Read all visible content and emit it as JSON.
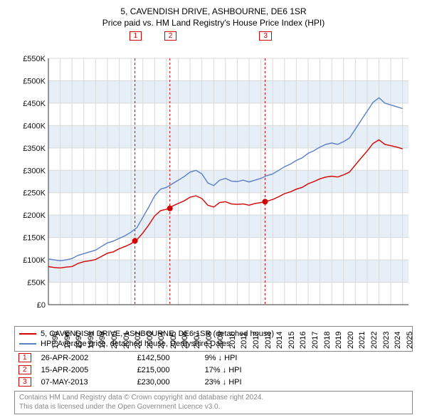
{
  "title_line1": "5, CAVENDISH DRIVE, ASHBOURNE, DE6 1SR",
  "title_line2": "Price paid vs. HM Land Registry's House Price Index (HPI)",
  "chart": {
    "type": "line",
    "background_color": "#ffffff",
    "grid_color": "#d9d9d9",
    "band_color": "#e6eef7",
    "axis_color": "#333333",
    "tick_fontsize": 11,
    "x": {
      "min": 1995,
      "max": 2025.5,
      "labels": [
        "1995",
        "1996",
        "1997",
        "1998",
        "1999",
        "2000",
        "2001",
        "2002",
        "2003",
        "2004",
        "2005",
        "2006",
        "2007",
        "2008",
        "2009",
        "2010",
        "2011",
        "2012",
        "2013",
        "2014",
        "2015",
        "2016",
        "2017",
        "2018",
        "2019",
        "2020",
        "2021",
        "2022",
        "2023",
        "2024",
        "2025"
      ]
    },
    "y": {
      "min": 0,
      "max": 550000,
      "tick_step": 50000,
      "labels": [
        "£0",
        "£50K",
        "£100K",
        "£150K",
        "£200K",
        "£250K",
        "£300K",
        "£350K",
        "£400K",
        "£450K",
        "£500K",
        "£550K"
      ]
    },
    "series": [
      {
        "name": "5, CAVENDISH DRIVE, ASHBOURNE, DE6 1SR (detached house)",
        "color": "#d40000",
        "line_width": 1.4,
        "points": [
          [
            1995,
            85000
          ],
          [
            1995.5,
            83000
          ],
          [
            1996,
            82000
          ],
          [
            1996.5,
            84000
          ],
          [
            1997,
            85000
          ],
          [
            1997.5,
            92000
          ],
          [
            1998,
            96000
          ],
          [
            1998.5,
            98000
          ],
          [
            1999,
            101000
          ],
          [
            1999.5,
            108000
          ],
          [
            2000,
            115000
          ],
          [
            2000.5,
            118000
          ],
          [
            2001,
            125000
          ],
          [
            2001.5,
            130000
          ],
          [
            2002,
            136000
          ],
          [
            2002.33,
            142500
          ],
          [
            2002.5,
            145000
          ],
          [
            2003,
            160000
          ],
          [
            2003.5,
            178000
          ],
          [
            2004,
            198000
          ],
          [
            2004.5,
            210000
          ],
          [
            2005,
            213000
          ],
          [
            2005.29,
            215000
          ],
          [
            2005.5,
            220000
          ],
          [
            2006,
            226000
          ],
          [
            2006.5,
            232000
          ],
          [
            2007,
            240000
          ],
          [
            2007.5,
            243000
          ],
          [
            2008,
            237000
          ],
          [
            2008.5,
            222000
          ],
          [
            2009,
            218000
          ],
          [
            2009.5,
            228000
          ],
          [
            2010,
            230000
          ],
          [
            2010.5,
            225000
          ],
          [
            2011,
            224000
          ],
          [
            2011.5,
            225000
          ],
          [
            2012,
            222000
          ],
          [
            2012.5,
            226000
          ],
          [
            2013,
            228000
          ],
          [
            2013.35,
            230000
          ],
          [
            2013.5,
            231000
          ],
          [
            2014,
            235000
          ],
          [
            2014.5,
            241000
          ],
          [
            2015,
            248000
          ],
          [
            2015.5,
            252000
          ],
          [
            2016,
            258000
          ],
          [
            2016.5,
            262000
          ],
          [
            2017,
            270000
          ],
          [
            2017.5,
            275000
          ],
          [
            2018,
            281000
          ],
          [
            2018.5,
            285000
          ],
          [
            2019,
            287000
          ],
          [
            2019.5,
            285000
          ],
          [
            2020,
            290000
          ],
          [
            2020.5,
            296000
          ],
          [
            2021,
            312000
          ],
          [
            2021.5,
            328000
          ],
          [
            2022,
            343000
          ],
          [
            2022.5,
            360000
          ],
          [
            2023,
            368000
          ],
          [
            2023.5,
            358000
          ],
          [
            2024,
            355000
          ],
          [
            2024.5,
            352000
          ],
          [
            2025,
            348000
          ]
        ]
      },
      {
        "name": "HPI: Average price, detached house, Derbyshire Dales",
        "color": "#5b7fc7",
        "line_width": 1.4,
        "points": [
          [
            1995,
            102000
          ],
          [
            1995.5,
            100000
          ],
          [
            1996,
            98000
          ],
          [
            1996.5,
            100000
          ],
          [
            1997,
            103000
          ],
          [
            1997.5,
            110000
          ],
          [
            1998,
            114000
          ],
          [
            1998.5,
            118000
          ],
          [
            1999,
            122000
          ],
          [
            1999.5,
            130000
          ],
          [
            2000,
            138000
          ],
          [
            2000.5,
            142000
          ],
          [
            2001,
            148000
          ],
          [
            2001.5,
            154000
          ],
          [
            2002,
            162000
          ],
          [
            2002.5,
            172000
          ],
          [
            2003,
            195000
          ],
          [
            2003.5,
            218000
          ],
          [
            2004,
            243000
          ],
          [
            2004.5,
            258000
          ],
          [
            2005,
            262000
          ],
          [
            2005.5,
            270000
          ],
          [
            2006,
            278000
          ],
          [
            2006.5,
            286000
          ],
          [
            2007,
            296000
          ],
          [
            2007.5,
            300000
          ],
          [
            2008,
            292000
          ],
          [
            2008.5,
            272000
          ],
          [
            2009,
            266000
          ],
          [
            2009.5,
            278000
          ],
          [
            2010,
            282000
          ],
          [
            2010.5,
            276000
          ],
          [
            2011,
            275000
          ],
          [
            2011.5,
            278000
          ],
          [
            2012,
            274000
          ],
          [
            2012.5,
            278000
          ],
          [
            2013,
            282000
          ],
          [
            2013.5,
            288000
          ],
          [
            2014,
            292000
          ],
          [
            2014.5,
            300000
          ],
          [
            2015,
            308000
          ],
          [
            2015.5,
            314000
          ],
          [
            2016,
            322000
          ],
          [
            2016.5,
            328000
          ],
          [
            2017,
            338000
          ],
          [
            2017.5,
            344000
          ],
          [
            2018,
            352000
          ],
          [
            2018.5,
            358000
          ],
          [
            2019,
            361000
          ],
          [
            2019.5,
            358000
          ],
          [
            2020,
            364000
          ],
          [
            2020.5,
            372000
          ],
          [
            2021,
            392000
          ],
          [
            2021.5,
            412000
          ],
          [
            2022,
            432000
          ],
          [
            2022.5,
            452000
          ],
          [
            2023,
            462000
          ],
          [
            2023.5,
            450000
          ],
          [
            2024,
            446000
          ],
          [
            2024.5,
            442000
          ],
          [
            2025,
            438000
          ]
        ]
      }
    ],
    "sale_markers": [
      {
        "label": "1",
        "x": 2002.33,
        "y": 142500
      },
      {
        "label": "2",
        "x": 2005.29,
        "y": 215000
      },
      {
        "label": "3",
        "x": 2013.35,
        "y": 230000
      }
    ],
    "marker_line_color": "#d40000",
    "marker_dot_color": "#d40000"
  },
  "legend": {
    "border_color": "#888888",
    "items": [
      {
        "color": "#d40000",
        "label": "5, CAVENDISH DRIVE, ASHBOURNE, DE6 1SR (detached house)"
      },
      {
        "color": "#5b7fc7",
        "label": "HPI: Average price, detached house, Derbyshire Dales"
      }
    ]
  },
  "sales_table": {
    "rows": [
      {
        "badge": "1",
        "date": "26-APR-2002",
        "price": "£142,500",
        "delta": "9% ↓ HPI"
      },
      {
        "badge": "2",
        "date": "15-APR-2005",
        "price": "£215,000",
        "delta": "17% ↓ HPI"
      },
      {
        "badge": "3",
        "date": "07-MAY-2013",
        "price": "£230,000",
        "delta": "23% ↓ HPI"
      }
    ]
  },
  "footer": {
    "line1": "Contains HM Land Registry data © Crown copyright and database right 2024.",
    "line2": "This data is licensed under the Open Government Licence v3.0."
  }
}
